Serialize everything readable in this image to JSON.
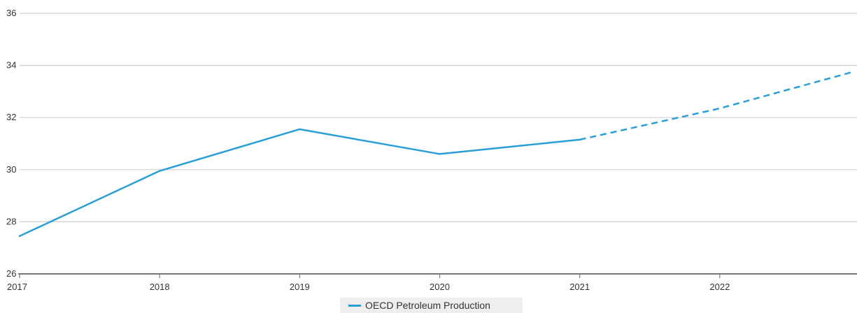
{
  "chart_data": {
    "type": "line",
    "categories": [
      "2017",
      "2018",
      "2019",
      "2020",
      "2021",
      "2022"
    ],
    "series": [
      {
        "name": "OECD Petroleum Production",
        "color": "#2a9fd6",
        "x": [
          2017,
          2018,
          2019,
          2020,
          2021,
          2022,
          2022.95
        ],
        "values": [
          27.45,
          29.95,
          31.55,
          30.6,
          31.15,
          32.35,
          33.75
        ],
        "style": [
          "solid",
          "solid",
          "solid",
          "solid",
          "dashed",
          "dashed"
        ]
      }
    ],
    "yticks": [
      "26",
      "28",
      "30",
      "32",
      "34",
      "36"
    ],
    "ylim": [
      26,
      36
    ],
    "xlim": [
      2017,
      2022.98
    ],
    "grid": true,
    "legend": "bottom-center"
  },
  "legend": {
    "label": "OECD Petroleum Production"
  },
  "colors": {
    "line": "#2a9fd6",
    "grid": "#d0d0d0",
    "axis": "#777777",
    "legend_bg": "#eeeeee"
  }
}
